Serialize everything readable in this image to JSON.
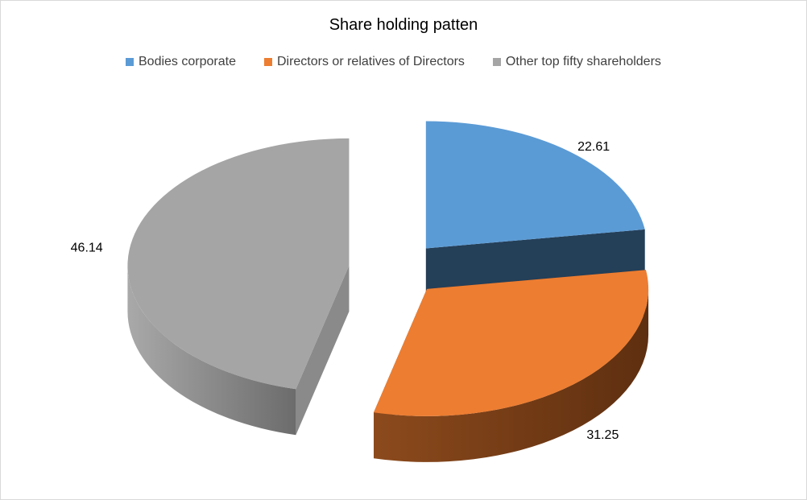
{
  "chart_data": {
    "type": "pie",
    "title": "Share holding patten",
    "legend_position": "top",
    "categories": [
      "Bodies corporate",
      "Directors or relatives of Directors",
      "Other top fifty shareholders"
    ],
    "values": [
      22.61,
      31.25,
      46.14
    ],
    "value_labels": [
      "22.61",
      "31.25",
      "46.14"
    ],
    "colors": [
      "#5b9bd5",
      "#ed7d31",
      "#a5a5a5"
    ]
  }
}
